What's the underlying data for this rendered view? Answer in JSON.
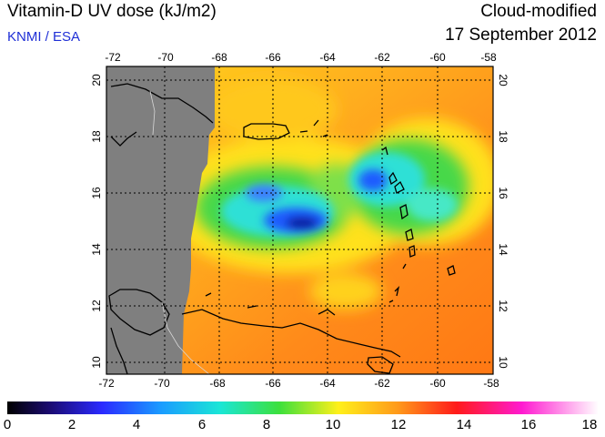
{
  "header": {
    "title": "Vitamin-D UV dose (kJ/m2)",
    "credit": "KNMI / ESA",
    "subtitle": "Cloud-modified",
    "date": "17 September 2012"
  },
  "map": {
    "lon_ticks": [
      "-72",
      "-70",
      "-68",
      "-66",
      "-64",
      "-62",
      "-60",
      "-58"
    ],
    "lat_ticks": [
      "20",
      "18",
      "16",
      "14",
      "12",
      "10"
    ],
    "colors": {
      "no_data": "#7f7f7f",
      "high_dose": "#ff8c1a",
      "mid_dose": "#ffd21a",
      "low_dose": "#3cd23c",
      "cloud": "#2a6aff",
      "coastline": "#000000"
    }
  },
  "colorbar": {
    "labels": [
      "0",
      "2",
      "4",
      "6",
      "8",
      "10",
      "12",
      "14",
      "16",
      "18"
    ]
  }
}
